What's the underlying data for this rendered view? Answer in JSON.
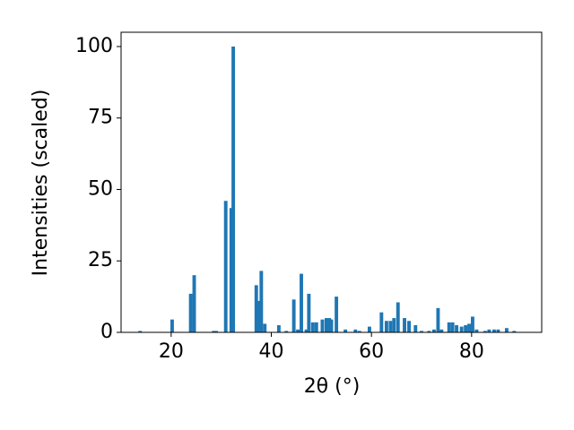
{
  "chart_data": {
    "type": "bar",
    "x": [
      13.8,
      20.2,
      23.9,
      24.6,
      28.5,
      29.0,
      30.9,
      32.0,
      32.4,
      37.0,
      37.5,
      38.0,
      38.7,
      41.5,
      43.0,
      44.5,
      45.3,
      46.0,
      47.0,
      47.5,
      48.3,
      49.0,
      50.2,
      51.0,
      51.6,
      52.0,
      53.0,
      54.8,
      56.8,
      57.6,
      59.6,
      62.0,
      63.0,
      63.8,
      64.5,
      65.3,
      66.6,
      67.5,
      68.8,
      70.0,
      71.5,
      72.5,
      73.3,
      74.0,
      75.5,
      76.2,
      77.0,
      78.0,
      78.8,
      79.5,
      80.2,
      81.0,
      82.7,
      83.5,
      84.5,
      85.3,
      87.0,
      88.5
    ],
    "values": [
      0.5,
      4.5,
      13.5,
      20,
      0.5,
      0.5,
      46,
      43.5,
      100,
      16.5,
      11,
      21.5,
      3,
      2.5,
      0.5,
      11.5,
      1,
      20.5,
      1,
      13.5,
      3.5,
      3.5,
      4.5,
      5,
      5,
      4.5,
      12.5,
      1,
      1,
      0.5,
      2,
      7,
      4,
      4,
      5,
      10.5,
      5,
      4,
      2.5,
      0.5,
      0.5,
      1,
      8.5,
      1,
      3.5,
      3.5,
      2.5,
      2,
      2.5,
      3,
      5.5,
      1,
      0.5,
      1,
      1,
      1,
      1.5,
      0.5
    ],
    "color": "#1f77b4",
    "xlabel": "2θ (°)",
    "ylabel": "Intensities (scaled)",
    "xlim": [
      10,
      94
    ],
    "ylim": [
      0,
      105
    ],
    "xticks": [
      20,
      40,
      60,
      80
    ],
    "yticks": [
      0,
      25,
      50,
      75,
      100
    ]
  }
}
